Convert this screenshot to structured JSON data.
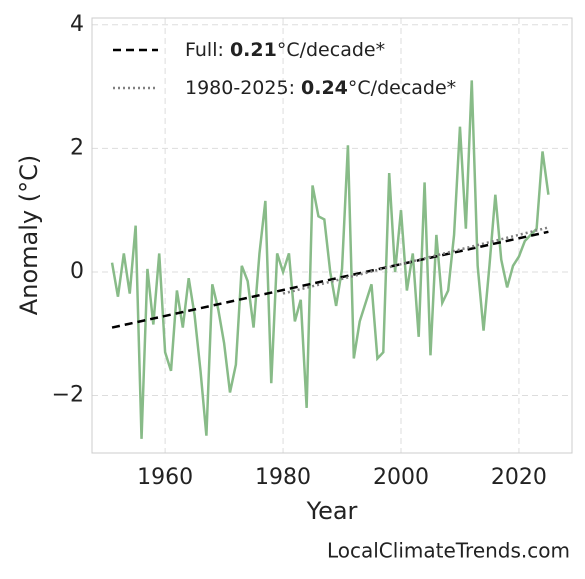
{
  "chart_data": {
    "type": "line",
    "x_label": "Year",
    "y_label": "Anomaly (°C)",
    "footer": "LocalClimateTrends.com",
    "xlim": [
      1947.6,
      2029
    ],
    "ylim": [
      -2.93,
      4.11
    ],
    "xticks": [
      1960,
      1980,
      2000,
      2020
    ],
    "yticks": [
      {
        "value": -2,
        "label": "−2"
      },
      0,
      2,
      4
    ],
    "grid": true,
    "legend": "upper left",
    "series": [
      {
        "name": "Anomaly",
        "color": "#88bb88",
        "style": "solid",
        "x": [
          1951,
          1952,
          1953,
          1954,
          1955,
          1956,
          1957,
          1958,
          1959,
          1960,
          1961,
          1962,
          1963,
          1964,
          1965,
          1966,
          1967,
          1968,
          1969,
          1970,
          1971,
          1972,
          1973,
          1974,
          1975,
          1976,
          1977,
          1978,
          1979,
          1980,
          1981,
          1982,
          1983,
          1984,
          1985,
          1986,
          1987,
          1988,
          1989,
          1990,
          1991,
          1992,
          1993,
          1994,
          1995,
          1996,
          1997,
          1998,
          1999,
          2000,
          2001,
          2002,
          2003,
          2004,
          2005,
          2006,
          2007,
          2008,
          2009,
          2010,
          2011,
          2012,
          2013,
          2014,
          2015,
          2016,
          2017,
          2018,
          2019,
          2020,
          2021,
          2022,
          2023,
          2024,
          2025
        ],
        "values": [
          0.15,
          -0.4,
          0.3,
          -0.35,
          0.75,
          -2.7,
          0.05,
          -0.85,
          0.3,
          -1.3,
          -1.6,
          -0.3,
          -0.9,
          -0.1,
          -0.7,
          -1.6,
          -2.65,
          -0.2,
          -0.6,
          -1.15,
          -1.95,
          -1.5,
          0.1,
          -0.15,
          -0.9,
          0.3,
          1.15,
          -1.8,
          0.3,
          0.0,
          0.3,
          -0.8,
          -0.45,
          -2.2,
          1.4,
          0.9,
          0.85,
          0.0,
          -0.55,
          0.05,
          2.05,
          -1.4,
          -0.8,
          -0.5,
          -0.2,
          -1.4,
          -1.3,
          1.6,
          0.0,
          1.0,
          -0.3,
          0.3,
          -1.05,
          1.45,
          -1.35,
          0.6,
          -0.5,
          -0.3,
          0.6,
          2.35,
          0.7,
          3.1,
          0.1,
          -0.95,
          0.1,
          1.25,
          0.2,
          -0.25,
          0.1,
          0.25,
          0.5,
          0.6,
          0.7,
          1.95,
          1.25
        ]
      },
      {
        "name": "Full:",
        "slope": "0.21",
        "unit": "°C/decade*",
        "color": "#000000",
        "style": "dashed",
        "x": [
          1951,
          2025
        ],
        "values": [
          -0.9,
          0.65
        ]
      },
      {
        "name": "1980-2025:",
        "slope": "0.24",
        "unit": "°C/decade*",
        "color": "#808080",
        "style": "dotted",
        "x": [
          1980,
          2025
        ],
        "values": [
          -0.35,
          0.72
        ]
      }
    ]
  }
}
